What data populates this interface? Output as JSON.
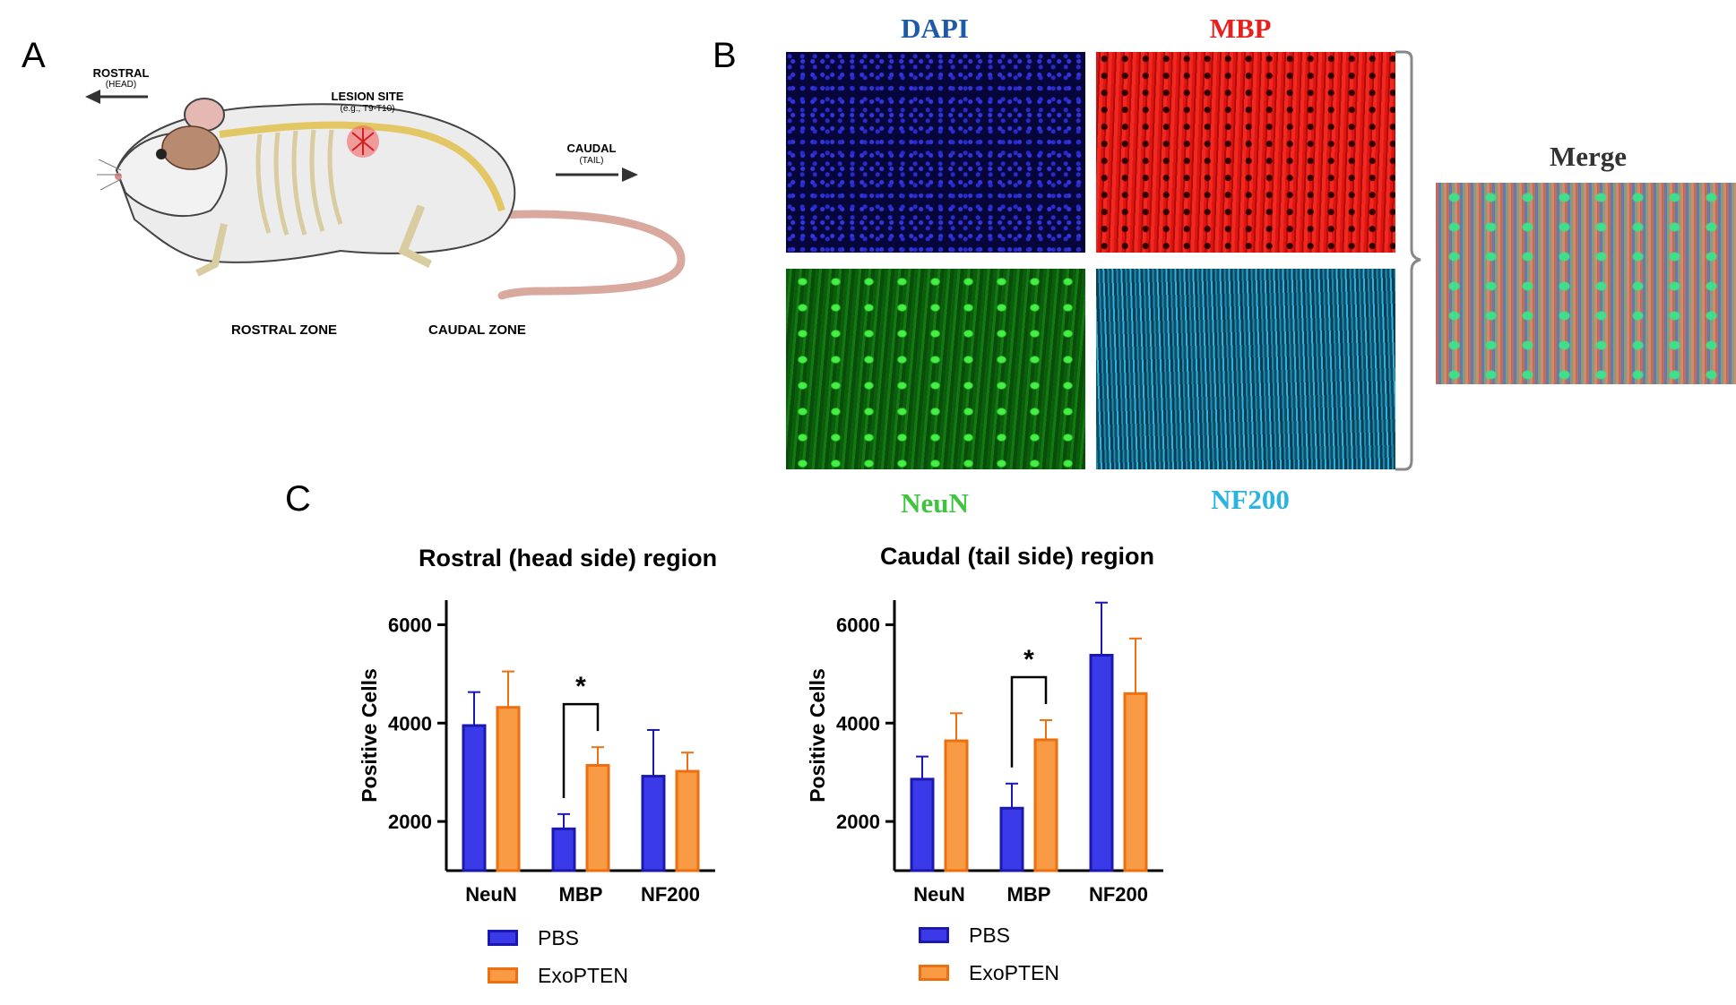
{
  "panels": {
    "a": "A",
    "b": "B",
    "c": "C"
  },
  "panel_a": {
    "rostral_label": "ROSTRAL",
    "rostral_sub": "(HEAD)",
    "lesion_label": "LESION SITE",
    "lesion_sub": "(e.g., T9-T10)",
    "caudal_label": "CAUDAL",
    "caudal_sub": "(TAIL)",
    "rostral_zone": "ROSTRAL ZONE",
    "caudal_zone": "CAUDAL ZONE"
  },
  "panel_b": {
    "dapi": "DAPI",
    "mbp": "MBP",
    "neun": "NeuN",
    "nf200": "NF200",
    "merge": "Merge",
    "colors": {
      "dapi": "#1f5aa8",
      "mbp": "#e8201d",
      "neun": "#3ec43e",
      "nf200": "#2ab2e0",
      "merge": "#333333"
    }
  },
  "legend": {
    "pbs": "PBS",
    "exopten": "ExoPTEN",
    "pbs_color": "#3a3ae8",
    "pbs_edge": "#1a18b0",
    "exo_color": "#f99a45",
    "exo_edge": "#ee6f10"
  },
  "chart_data": [
    {
      "type": "bar",
      "title": "Rostral (head side) region",
      "ylabel": "Positive Cells",
      "categories": [
        "NeuN",
        "MBP",
        "NF200"
      ],
      "ylim": [
        1000,
        6500
      ],
      "yticks": [
        2000,
        4000,
        6000
      ],
      "series": [
        {
          "name": "PBS",
          "values": [
            3950,
            1850,
            2920
          ],
          "errors": [
            680,
            300,
            940
          ]
        },
        {
          "name": "ExoPTEN",
          "values": [
            4320,
            3140,
            3020
          ],
          "errors": [
            730,
            370,
            380
          ]
        }
      ],
      "significance": {
        "category": "MBP",
        "label": "*"
      }
    },
    {
      "type": "bar",
      "title": "Caudal (tail side) region",
      "ylabel": "Positive Cells",
      "categories": [
        "NeuN",
        "MBP",
        "NF200"
      ],
      "ylim": [
        1000,
        6500
      ],
      "yticks": [
        2000,
        4000,
        6000
      ],
      "series": [
        {
          "name": "PBS",
          "values": [
            2860,
            2270,
            5380
          ],
          "errors": [
            460,
            500,
            1070
          ]
        },
        {
          "name": "ExoPTEN",
          "values": [
            3640,
            3660,
            4600
          ],
          "errors": [
            560,
            400,
            1120
          ]
        }
      ],
      "significance": {
        "category": "MBP",
        "label": "*"
      }
    }
  ]
}
